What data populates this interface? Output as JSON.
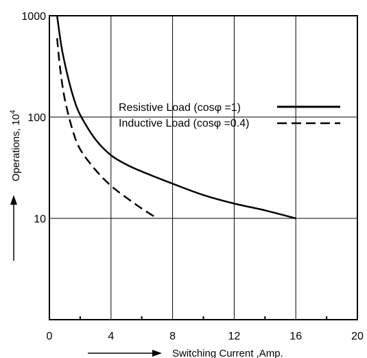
{
  "chart_data": {
    "type": "line",
    "title": "",
    "xlabel": "Switching Current ,Amp.",
    "ylabel_text": "Operations, 10",
    "ylabel_exponent": "4",
    "x_scale": "linear",
    "y_scale": "log",
    "xlim": [
      0,
      20
    ],
    "ylim": [
      1,
      1000
    ],
    "x_ticks": [
      0,
      4,
      8,
      12,
      16,
      20
    ],
    "x_minor_ticks": [
      2,
      6,
      10,
      14,
      18
    ],
    "y_ticks": [
      10,
      100,
      1000
    ],
    "grid": true,
    "legend_position": "upper-right",
    "series": [
      {
        "name": "Resistive Load (cosφ =1)",
        "style": "solid",
        "color": "#000000",
        "x": [
          0.5,
          0.8,
          1.2,
          1.6,
          2.0,
          3.0,
          4.0,
          5.0,
          6.0,
          8.0,
          10.0,
          12.0,
          14.0,
          16.0
        ],
        "y": [
          1000,
          480,
          250,
          150,
          105,
          60,
          42,
          34,
          29,
          22,
          17,
          14,
          12,
          10
        ]
      },
      {
        "name": "Inductive Load (cosφ =0.4)",
        "style": "dashed",
        "color": "#000000",
        "x": [
          0.5,
          0.7,
          1.0,
          1.5,
          2.0,
          3.0,
          4.0,
          5.0,
          6.0,
          7.0
        ],
        "y": [
          600,
          300,
          150,
          75,
          48,
          30,
          21,
          16,
          12.5,
          10
        ]
      }
    ]
  }
}
